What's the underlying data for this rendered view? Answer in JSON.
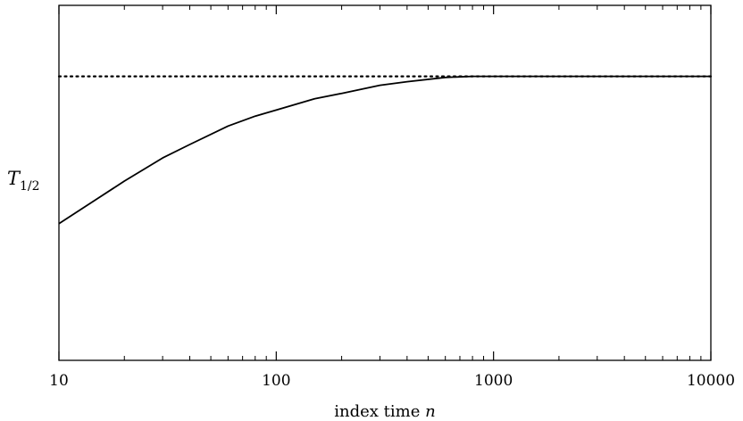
{
  "chart_data": {
    "type": "line",
    "title": "",
    "xlabel_text": "index time ",
    "xlabel_var": "n",
    "ylabel_main": "T",
    "ylabel_sub": "1/2",
    "xscale": "log",
    "xlim": [
      10,
      10000
    ],
    "ylim": [
      0,
      1
    ],
    "xticks": [
      10,
      100,
      1000,
      10000
    ],
    "xtick_labels": [
      "10",
      "100",
      "1000",
      "10000"
    ],
    "minor_xticks": true,
    "grid": false,
    "legend": "none",
    "series": [
      {
        "style": "solid",
        "x": [
          10,
          15,
          20,
          30,
          40,
          60,
          80,
          100,
          150,
          200,
          300,
          400,
          600,
          800,
          1000,
          10000
        ],
        "y": [
          0.385,
          0.455,
          0.505,
          0.57,
          0.608,
          0.66,
          0.688,
          0.705,
          0.737,
          0.752,
          0.775,
          0.785,
          0.797,
          0.8,
          0.8,
          0.8
        ]
      },
      {
        "style": "dotted",
        "x": [
          10,
          10000
        ],
        "y": [
          0.8,
          0.8
        ]
      }
    ]
  }
}
